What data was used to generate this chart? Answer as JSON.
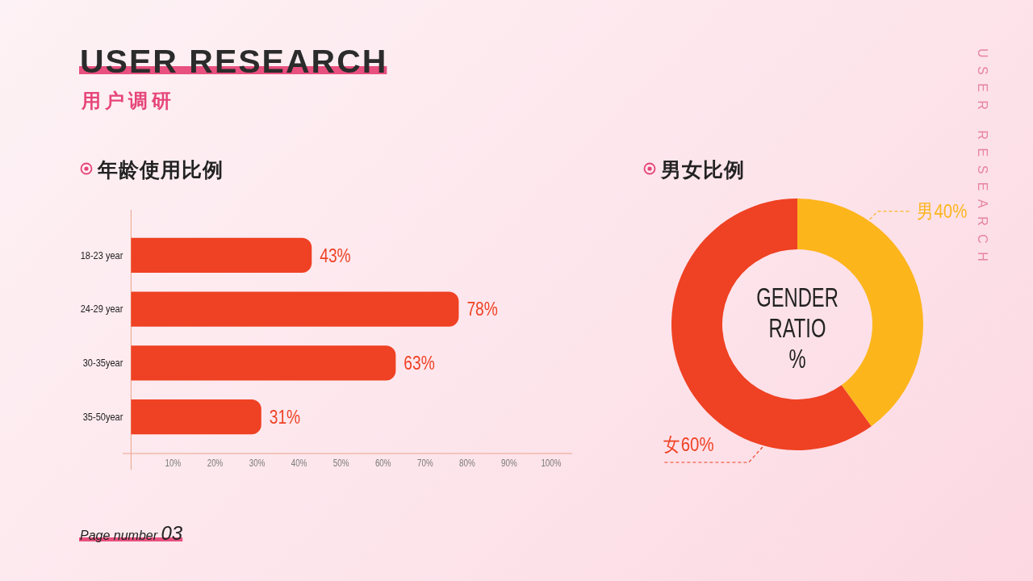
{
  "chart_data": [
    {
      "type": "other",
      "title": "USER RESEARCH",
      "subtitle": "用户调研",
      "annotations": [
        "USER RESEARCH",
        "Page number 03"
      ]
    },
    {
      "type": "bar",
      "orientation": "horizontal",
      "title": "年龄使用比例",
      "categories": [
        "18-23 year",
        "24-29 year",
        "30-35year",
        "35-50year"
      ],
      "values": [
        43,
        78,
        63,
        31
      ],
      "color": "#ef4123",
      "value_labels": [
        "43%",
        "78%",
        "63%",
        "31%"
      ],
      "xlim": [
        -2,
        105
      ],
      "xticks": [
        {
          "value": 10,
          "label": "10%"
        },
        {
          "value": 20,
          "label": "20%"
        },
        {
          "value": 30,
          "label": "30%"
        },
        {
          "value": 40,
          "label": "40%"
        },
        {
          "value": 50,
          "label": "50%"
        },
        {
          "value": 60,
          "label": "60%"
        },
        {
          "value": 70,
          "label": "70%"
        },
        {
          "value": 80,
          "label": "80%"
        },
        {
          "value": 90,
          "label": "90%"
        },
        {
          "value": 100,
          "label": "100%"
        }
      ]
    },
    {
      "type": "donut",
      "title": "男女比例",
      "categories": [
        "男",
        "女"
      ],
      "values": [
        40,
        60
      ],
      "colors": [
        "#fdb51c",
        "#ef4123"
      ],
      "value_labels": [
        "40%",
        "60%"
      ],
      "annotations": [
        "GENDER RATIO %"
      ]
    }
  ]
}
